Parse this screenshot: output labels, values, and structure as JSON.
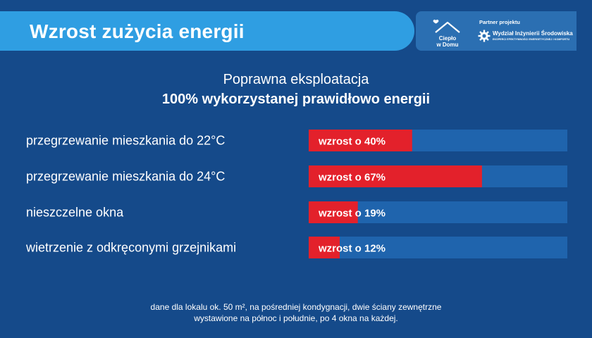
{
  "header": {
    "title": "Wzrost zużycia energii"
  },
  "logo": {
    "line1": "Ciepło",
    "line2": "w Domu"
  },
  "partner": {
    "label": "Partner projektu",
    "name": "Wydział Inżynierii Środowiska",
    "subtitle": "EKSPERCI EFEKTYWNOŚCI ENERGETYCZNEJ I KOMFORTU"
  },
  "colors": {
    "background": "#154a8a",
    "header": "#2f9ee2",
    "track": "#1f64ad",
    "bar": "#e3212b"
  },
  "chart_data": {
    "type": "bar",
    "orientation": "horizontal",
    "title": "Poprawna eksploatacja",
    "subtitle": "100% wykorzystanej prawidłowo energii",
    "categories": [
      "przegrzewanie mieszkania do 22°C",
      "przegrzewanie mieszkania do 24°C",
      "nieszczelne okna",
      "wietrzenie z odkręconymi grzejnikami"
    ],
    "values": [
      40,
      67,
      19,
      12
    ],
    "value_labels": [
      "wzrost o 40%",
      "wzrost o 67%",
      "wzrost o 19%",
      "wzrost o 12%"
    ],
    "unit": "%",
    "xlim": [
      0,
      100
    ]
  },
  "footnote": {
    "line1": "dane dla lokalu ok. 50 m², na pośredniej kondygnacji, dwie ściany zewnętrzne",
    "line2": "wystawione na północ i południe, po 4 okna na każdej."
  }
}
